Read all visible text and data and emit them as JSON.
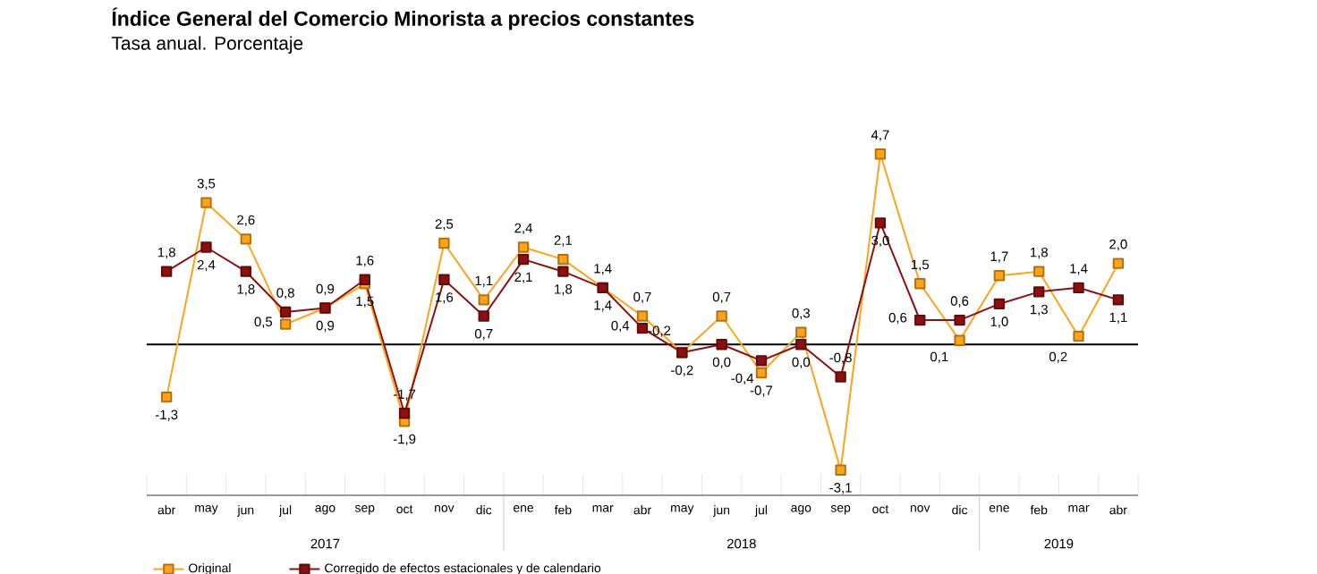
{
  "chart_data": {
    "type": "line",
    "title": "Índice General del Comercio Minorista a precios constantes",
    "subtitle": "Tasa anual. Porcentaje",
    "x": [
      "2017-04",
      "2017-05",
      "2017-06",
      "2017-07",
      "2017-08",
      "2017-09",
      "2017-10",
      "2017-11",
      "2017-12",
      "2018-01",
      "2018-02",
      "2018-03",
      "2018-04",
      "2018-05",
      "2018-06",
      "2018-07",
      "2018-08",
      "2018-09",
      "2018-10",
      "2018-11",
      "2018-12",
      "2019-01",
      "2019-02",
      "2019-03",
      "2019-04"
    ],
    "xlim": [
      "2017-03-16",
      "2019-04-16"
    ],
    "xticks": [
      {
        "value": "2017-04",
        "label": "abr"
      },
      {
        "value": "2017-05",
        "label": "may"
      },
      {
        "value": "2017-06",
        "label": "jun"
      },
      {
        "value": "2017-07",
        "label": "jul"
      },
      {
        "value": "2017-08",
        "label": "ago"
      },
      {
        "value": "2017-09",
        "label": "sep"
      },
      {
        "value": "2017-10",
        "label": "oct"
      },
      {
        "value": "2017-11",
        "label": "nov"
      },
      {
        "value": "2017-12",
        "label": "dic"
      },
      {
        "value": "2018-01",
        "label": "ene"
      },
      {
        "value": "2018-02",
        "label": "feb"
      },
      {
        "value": "2018-03",
        "label": "mar"
      },
      {
        "value": "2018-04",
        "label": "abr"
      },
      {
        "value": "2018-05",
        "label": "may"
      },
      {
        "value": "2018-06",
        "label": "jun"
      },
      {
        "value": "2018-07",
        "label": "jul"
      },
      {
        "value": "2018-08",
        "label": "ago"
      },
      {
        "value": "2018-09",
        "label": "sep"
      },
      {
        "value": "2018-10",
        "label": "oct"
      },
      {
        "value": "2018-11",
        "label": "nov"
      },
      {
        "value": "2018-12",
        "label": "dic"
      },
      {
        "value": "2019-01",
        "label": "ene"
      },
      {
        "value": "2019-02",
        "label": "feb"
      },
      {
        "value": "2019-03",
        "label": "mar"
      },
      {
        "value": "2019-04",
        "label": "abr"
      }
    ],
    "series": [
      {
        "name": "Original",
        "color": "#ffa31a",
        "values": [
          -1.3,
          3.5,
          2.6,
          0.5,
          0.9,
          1.5,
          -1.9,
          2.5,
          1.1,
          2.4,
          2.1,
          1.4,
          0.7,
          -0.2,
          0.7,
          -0.7,
          0.3,
          -3.1,
          4.7,
          1.5,
          0.1,
          1.7,
          1.8,
          0.2,
          2.0
        ],
        "value_labels": [
          "-1,3",
          "3,5",
          "2,6",
          "0,5",
          "0,9",
          "1,5",
          "-1,9",
          "2,5",
          "1,1",
          "2,4",
          "2,1",
          "1,4",
          "0,7",
          "-0,2",
          "0,7",
          "-0,7",
          "0,3",
          "-3,1",
          "4,7",
          "1,5",
          "0,1",
          "1,7",
          "1,8",
          "0,2",
          "2,0"
        ]
      },
      {
        "name": "Corregido de efectos estacionales y de calendario",
        "color": "#8b1010",
        "values": [
          1.8,
          2.4,
          1.8,
          0.8,
          0.9,
          1.6,
          -1.7,
          1.6,
          0.7,
          2.1,
          1.8,
          1.4,
          0.4,
          -0.2,
          0.0,
          -0.4,
          0.0,
          -0.8,
          3.0,
          0.6,
          0.6,
          1.0,
          1.3,
          1.4,
          1.1
        ],
        "value_labels": [
          "1,8",
          "2,4",
          "1,8",
          "0,8",
          "0,9",
          "1,6",
          "-1,7",
          "1,6",
          "0,7",
          "2,1",
          "1,8",
          "1,4",
          "0,4",
          "-0,2",
          "0,0",
          "-0,4",
          "0,0",
          "-0,8",
          "3,0",
          "0,6",
          "0,6",
          "1,0",
          "1,3",
          "1,4",
          "1,1"
        ]
      }
    ],
    "annotations": [
      "2017",
      "2018",
      "2019"
    ],
    "marker": "square",
    "legend": "bottom left"
  }
}
